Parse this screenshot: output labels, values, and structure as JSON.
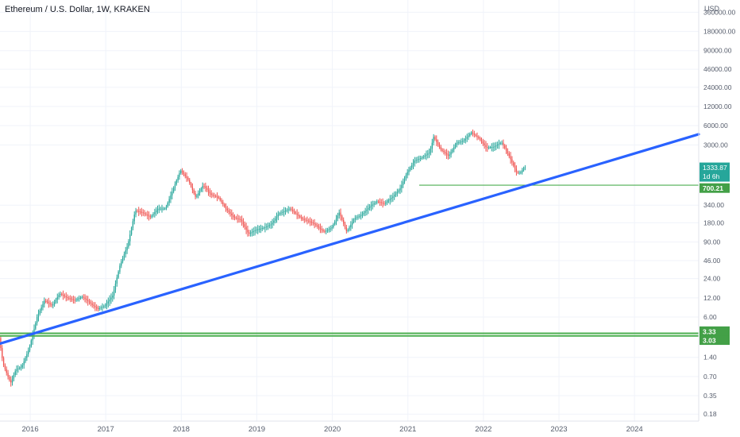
{
  "header": {
    "title": "Ethereum / U.S. Dollar, 1W, KRAKEN",
    "currency": "USD"
  },
  "chart_data": {
    "type": "candlestick",
    "scale": "log",
    "y_ticks": [
      360000,
      180000,
      90000,
      46000,
      24000,
      12000,
      6000,
      3000,
      340,
      180,
      90,
      46,
      24,
      12,
      6,
      1.4,
      0.7,
      0.35,
      0.18
    ],
    "y_tick_labels": [
      "360000.00",
      "180000.00",
      "90000.00",
      "46000.00",
      "24000.00",
      "12000.00",
      "6000.00",
      "3000.00",
      "340.00",
      "180.00",
      "90.00",
      "46.00",
      "24.00",
      "12.00",
      "6.00",
      "1.40",
      "0.70",
      "0.35",
      "0.18"
    ],
    "x_ticks": [
      2016,
      2017,
      2018,
      2019,
      2020,
      2021,
      2022,
      2023,
      2024
    ],
    "x_tick_labels": [
      "2016",
      "2017",
      "2018",
      "2019",
      "2020",
      "2021",
      "2022",
      "2023",
      "2024"
    ],
    "xlim": [
      2015.6,
      2024.85
    ],
    "ylim": [
      0.14,
      560000
    ],
    "grid": true,
    "price_path": [
      [
        2015.6,
        2.8
      ],
      [
        2015.65,
        1.1
      ],
      [
        2015.75,
        0.55
      ],
      [
        2015.82,
        0.9
      ],
      [
        2015.9,
        1.0
      ],
      [
        2016.0,
        2.0
      ],
      [
        2016.1,
        6.0
      ],
      [
        2016.2,
        11.0
      ],
      [
        2016.3,
        9.0
      ],
      [
        2016.4,
        14.0
      ],
      [
        2016.5,
        12.0
      ],
      [
        2016.6,
        11.0
      ],
      [
        2016.7,
        12.5
      ],
      [
        2016.8,
        10.0
      ],
      [
        2016.9,
        8.0
      ],
      [
        2017.0,
        9.0
      ],
      [
        2017.1,
        13.0
      ],
      [
        2017.2,
        40.0
      ],
      [
        2017.3,
        80.0
      ],
      [
        2017.4,
        280.0
      ],
      [
        2017.5,
        260.0
      ],
      [
        2017.6,
        220.0
      ],
      [
        2017.7,
        300.0
      ],
      [
        2017.8,
        300.0
      ],
      [
        2017.9,
        600.0
      ],
      [
        2018.0,
        1200.0
      ],
      [
        2018.1,
        850.0
      ],
      [
        2018.2,
        450.0
      ],
      [
        2018.3,
        700.0
      ],
      [
        2018.4,
        500.0
      ],
      [
        2018.5,
        450.0
      ],
      [
        2018.6,
        300.0
      ],
      [
        2018.7,
        220.0
      ],
      [
        2018.8,
        200.0
      ],
      [
        2018.9,
        120.0
      ],
      [
        2019.0,
        140.0
      ],
      [
        2019.1,
        150.0
      ],
      [
        2019.2,
        170.0
      ],
      [
        2019.3,
        250.0
      ],
      [
        2019.45,
        300.0
      ],
      [
        2019.6,
        210.0
      ],
      [
        2019.75,
        180.0
      ],
      [
        2019.9,
        130.0
      ],
      [
        2020.0,
        150.0
      ],
      [
        2020.1,
        260.0
      ],
      [
        2020.2,
        130.0
      ],
      [
        2020.3,
        210.0
      ],
      [
        2020.4,
        240.0
      ],
      [
        2020.5,
        320.0
      ],
      [
        2020.6,
        390.0
      ],
      [
        2020.7,
        360.0
      ],
      [
        2020.8,
        450.0
      ],
      [
        2020.9,
        600.0
      ],
      [
        2021.0,
        1100.0
      ],
      [
        2021.1,
        1700.0
      ],
      [
        2021.2,
        1900.0
      ],
      [
        2021.3,
        2300.0
      ],
      [
        2021.35,
        4000.0
      ],
      [
        2021.45,
        2500.0
      ],
      [
        2021.55,
        2000.0
      ],
      [
        2021.65,
        3200.0
      ],
      [
        2021.75,
        3500.0
      ],
      [
        2021.85,
        4700.0
      ],
      [
        2021.95,
        3800.0
      ],
      [
        2022.05,
        2700.0
      ],
      [
        2022.15,
        2800.0
      ],
      [
        2022.25,
        3300.0
      ],
      [
        2022.35,
        2000.0
      ],
      [
        2022.45,
        1100.0
      ],
      [
        2022.5,
        1100.0
      ],
      [
        2022.55,
        1333.87
      ]
    ],
    "trendline": {
      "x": [
        2015.6,
        2024.85
      ],
      "y": [
        2.3,
        4400
      ]
    },
    "support_line": {
      "x": [
        2021.15,
        2024.85
      ],
      "y": [
        700.21,
        700.21
      ]
    },
    "band": {
      "x": [
        2015.6,
        2024.85
      ],
      "y_top": 3.33,
      "y_bottom": 3.03
    },
    "price_labels": {
      "current": "1333.87",
      "countdown": "1d 6h",
      "support": "700.21",
      "band_top": "3.33",
      "band_bottom": "3.03"
    },
    "colors": {
      "up": "#26a69a",
      "down": "#ef5350",
      "trendline": "#2962ff",
      "level": "#4caf50",
      "current_label": "#26a69a",
      "level_label": "#43a047"
    }
  }
}
